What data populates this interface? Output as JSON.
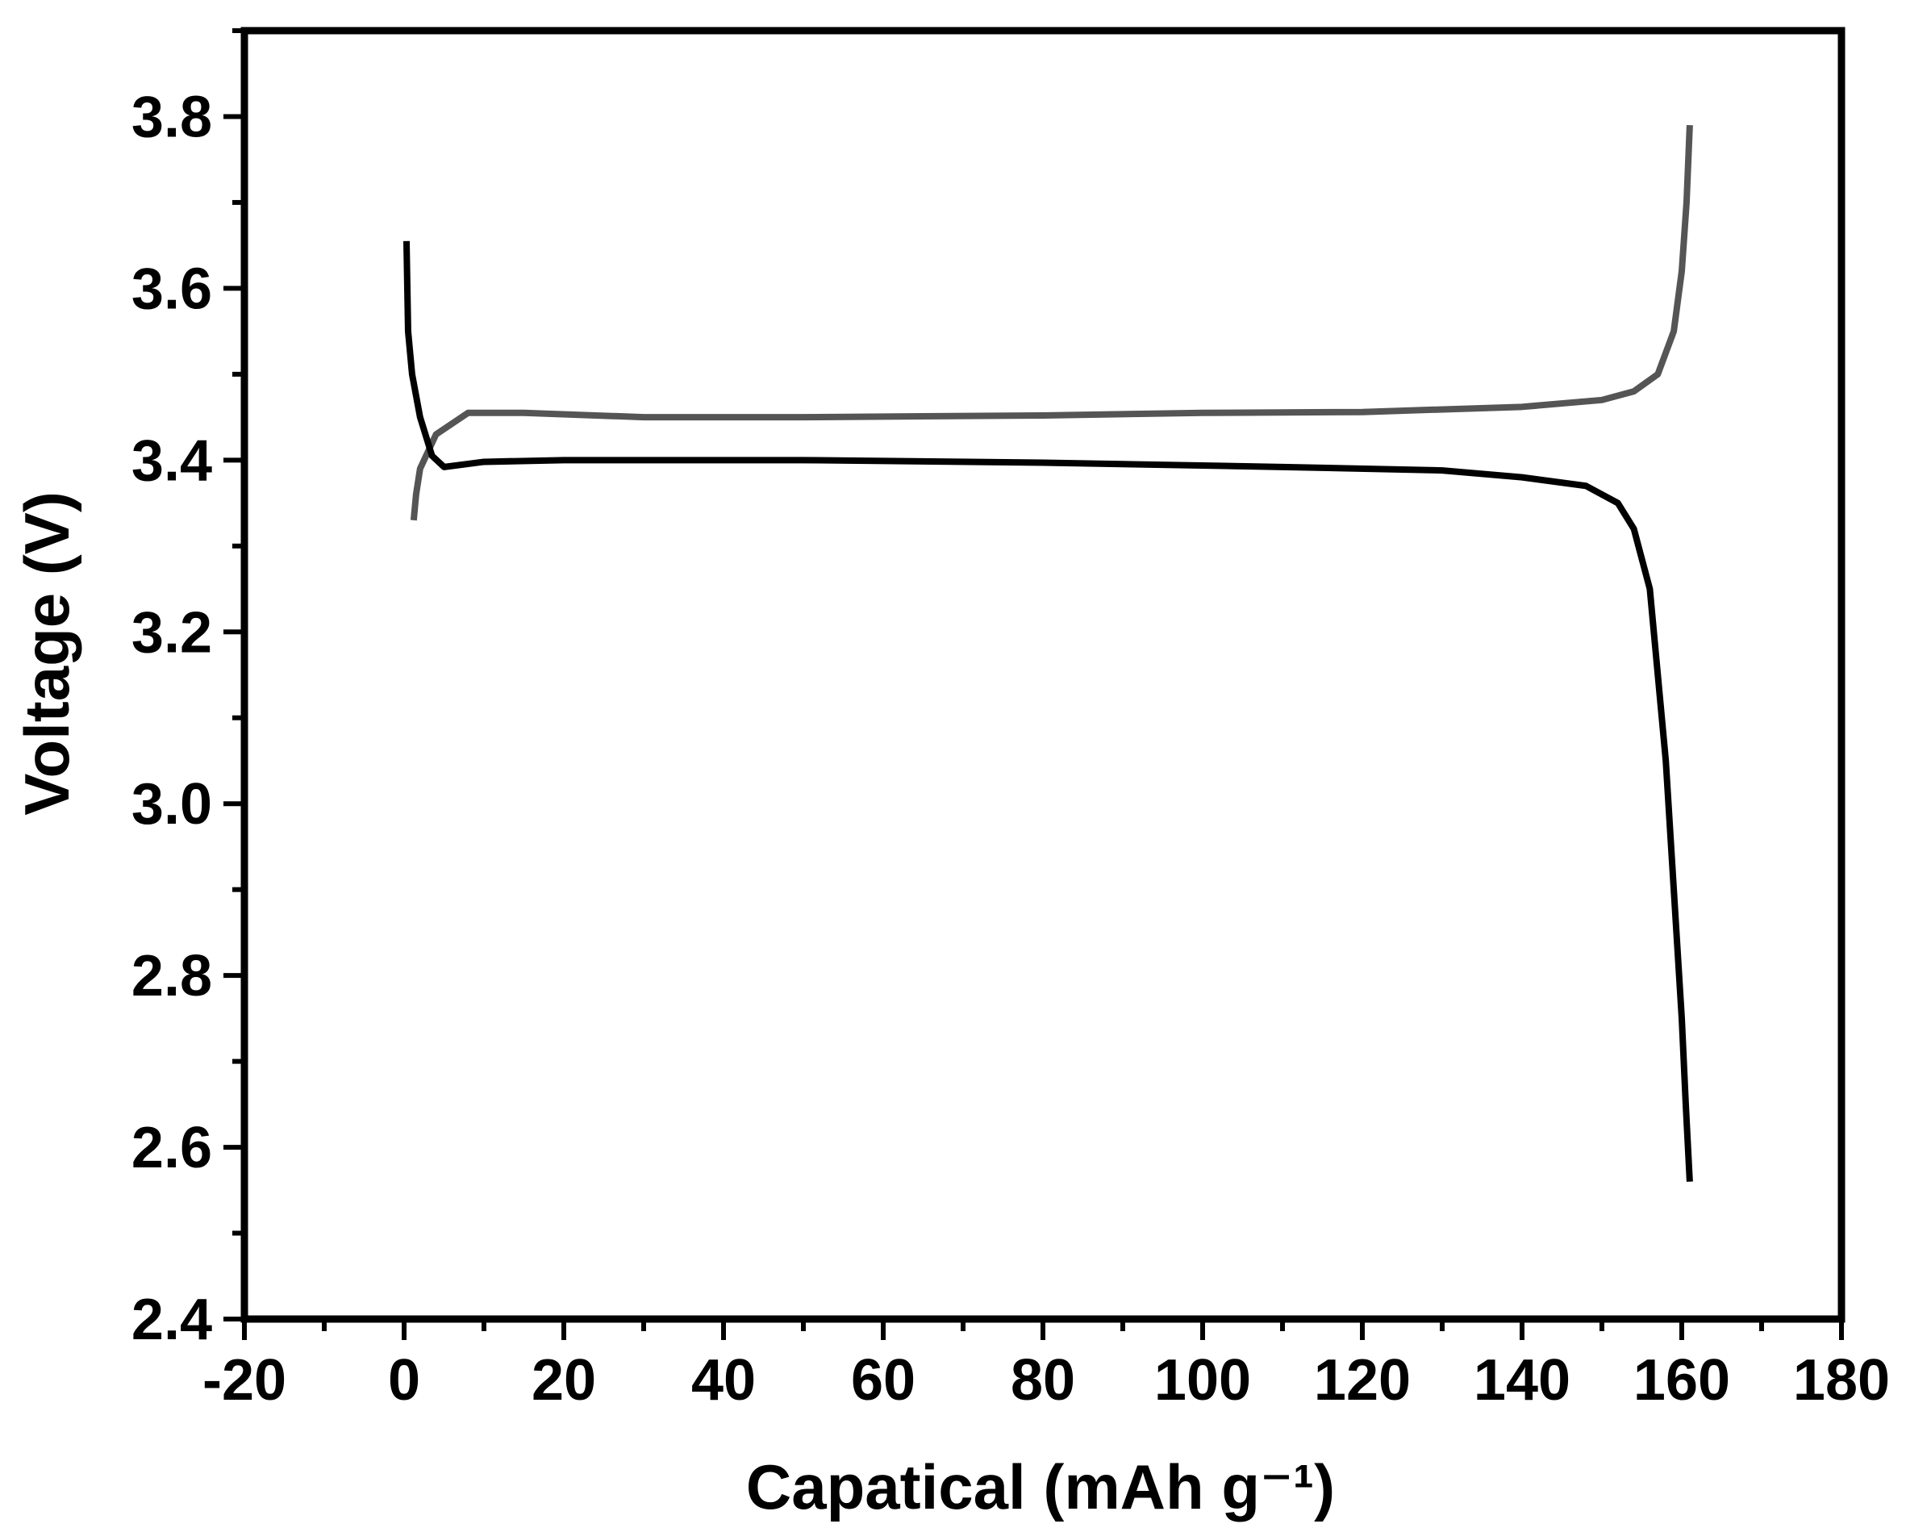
{
  "chart_data": {
    "type": "line",
    "x_label": "Capatical (mAh g⁻¹)",
    "y_label": "Voltage (V)",
    "xlim": [
      -20,
      180
    ],
    "xticks": [
      -20,
      0,
      20,
      40,
      60,
      80,
      100,
      120,
      140,
      160,
      180
    ],
    "ylim": [
      2.4,
      3.9
    ],
    "yticks": [
      {
        "value": 2.4,
        "label": "2.4"
      },
      {
        "value": 2.6,
        "label": "2.6"
      },
      {
        "value": 2.8,
        "label": "2.8"
      },
      {
        "value": 3.0,
        "label": "3.0"
      },
      {
        "value": 3.2,
        "label": "3.2"
      },
      {
        "value": 3.4,
        "label": "3.4"
      },
      {
        "value": 3.6,
        "label": "3.6"
      },
      {
        "value": 3.8,
        "label": "3.8"
      }
    ],
    "series": [
      {
        "color": "#555555",
        "x": [
          1.2,
          1.5,
          2,
          4,
          8,
          15,
          30,
          50,
          80,
          100,
          120,
          140,
          150,
          154,
          157,
          159,
          160,
          160.6,
          161
        ],
        "values": [
          3.33,
          3.36,
          3.39,
          3.43,
          3.455,
          3.455,
          3.45,
          3.45,
          3.452,
          3.455,
          3.456,
          3.462,
          3.47,
          3.48,
          3.5,
          3.55,
          3.62,
          3.7,
          3.79
        ]
      },
      {
        "color": "#000000",
        "x": [
          0.3,
          0.5,
          1,
          2,
          3.5,
          5,
          10,
          20,
          50,
          80,
          110,
          130,
          140,
          148,
          152,
          154,
          156,
          157,
          158,
          159,
          160,
          160.5,
          161
        ],
        "values": [
          3.655,
          3.55,
          3.5,
          3.45,
          3.405,
          3.392,
          3.398,
          3.4,
          3.4,
          3.397,
          3.392,
          3.388,
          3.38,
          3.37,
          3.35,
          3.32,
          3.25,
          3.15,
          3.05,
          2.9,
          2.75,
          2.65,
          2.56
        ]
      }
    ]
  }
}
